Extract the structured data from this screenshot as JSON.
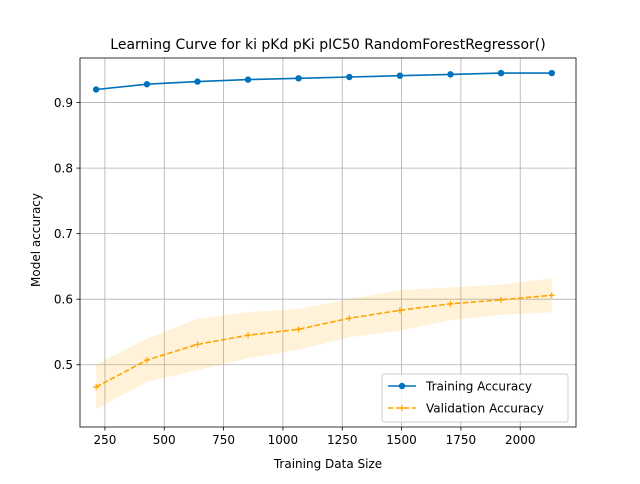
{
  "chart_data": {
    "type": "line",
    "title": "Learning Curve for ki pKd pKi pIC50 RandomForestRegressor()",
    "xlabel": "Training Data Size",
    "ylabel": "Model accuracy",
    "xlim": [
      145,
      2235
    ],
    "ylim": [
      0.405,
      0.968
    ],
    "x_ticks": [
      250,
      500,
      750,
      1000,
      1250,
      1500,
      1750,
      2000
    ],
    "x_tick_labels": [
      "250",
      "500",
      "750",
      "1000",
      "1250",
      "1500",
      "1750",
      "2000"
    ],
    "y_ticks": [
      0.5,
      0.6,
      0.7,
      0.8,
      0.9
    ],
    "y_tick_labels": [
      "0.5",
      "0.6",
      "0.7",
      "0.8",
      "0.9"
    ],
    "grid": true,
    "legend_position": "lower-right",
    "x": [
      213,
      427,
      640,
      853,
      1066,
      1280,
      1493,
      1706,
      1919,
      2133
    ],
    "series": [
      {
        "name": "Training Accuracy",
        "color": "#0072bd",
        "line_style": "solid",
        "marker": "circle",
        "values": [
          0.92,
          0.928,
          0.932,
          0.935,
          0.937,
          0.939,
          0.941,
          0.943,
          0.945,
          0.945
        ]
      },
      {
        "name": "Validation Accuracy",
        "color": "#ffa500",
        "line_style": "dashed",
        "marker": "plus",
        "values": [
          0.466,
          0.507,
          0.531,
          0.545,
          0.554,
          0.571,
          0.583,
          0.593,
          0.599,
          0.606
        ],
        "band_upper": [
          0.5,
          0.54,
          0.57,
          0.58,
          0.585,
          0.6,
          0.614,
          0.618,
          0.622,
          0.632
        ],
        "band_lower": [
          0.432,
          0.474,
          0.492,
          0.51,
          0.523,
          0.542,
          0.552,
          0.568,
          0.576,
          0.58
        ]
      }
    ]
  }
}
